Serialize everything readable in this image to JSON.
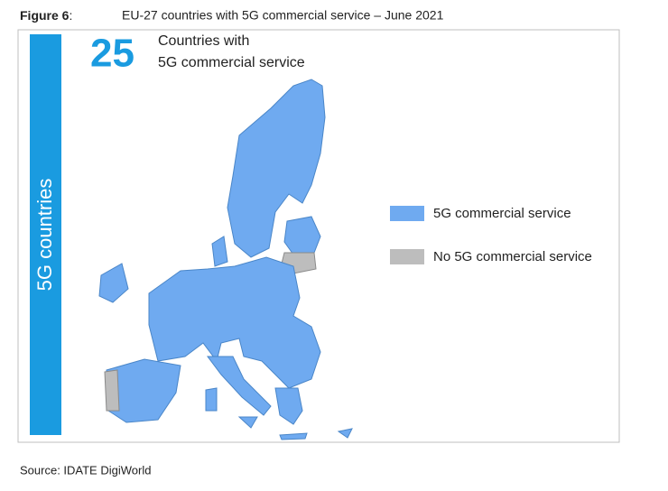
{
  "figure_label": "Figure 6",
  "figure_label_suffix": ":",
  "caption": "EU-27 countries with 5G commercial service – June 2021",
  "side_label": "5G countries",
  "headline": {
    "number": "25",
    "line1": "Countries with",
    "line2": "5G commercial service"
  },
  "legend": [
    {
      "label": "5G commercial service",
      "color": "#6faaf0"
    },
    {
      "label": "No 5G commercial service",
      "color": "#bdbdbd"
    }
  ],
  "source": "Source: IDATE DigiWorld"
}
